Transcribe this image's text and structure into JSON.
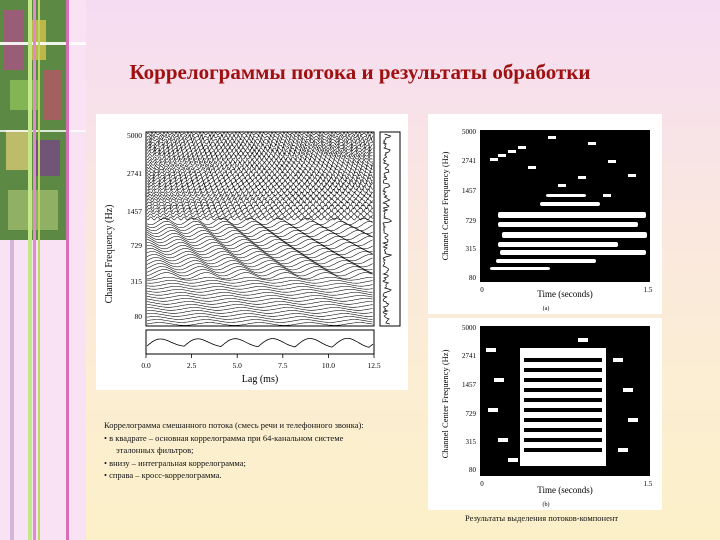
{
  "slide": {
    "title": "Коррелограммы потока и результаты обработки",
    "caption_lines": [
      "Коррелограмма смешанного потока (смесь речи и телефонного звонка):",
      "• в квадрате – основная коррелограмма при 64-канальном системе",
      "эталонных фильтров;",
      "• внизу – интегральная коррелограмма;",
      "• справа – кросс-коррелограмма."
    ],
    "right_caption": "Результаты выделения потоков-компонент"
  },
  "left_figure": {
    "ylabel": "Channel Frequency (Hz)",
    "xlabel": "Lag (ms)",
    "yticks": [
      "5000",
      "2741",
      "1457",
      "729",
      "315",
      "80"
    ],
    "xticks": [
      "0.0",
      "2.5",
      "5.0",
      "7.5",
      "10.0",
      "12.5"
    ]
  },
  "right_top_figure": {
    "ylabel": "Channel Center Frequency (Hz)",
    "xlabel": "Time (seconds)",
    "yticks": [
      "5000",
      "2741",
      "1457",
      "729",
      "315",
      "80"
    ],
    "xticks": [
      "0",
      "1.5"
    ],
    "panel_label": "(a)"
  },
  "right_bottom_figure": {
    "ylabel": "Channel Center Frequency (Hz)",
    "xlabel": "Time (seconds)",
    "yticks": [
      "5000",
      "2741",
      "1457",
      "729",
      "315",
      "80"
    ],
    "xticks": [
      "0",
      "1.5"
    ],
    "panel_label": "(b)"
  }
}
